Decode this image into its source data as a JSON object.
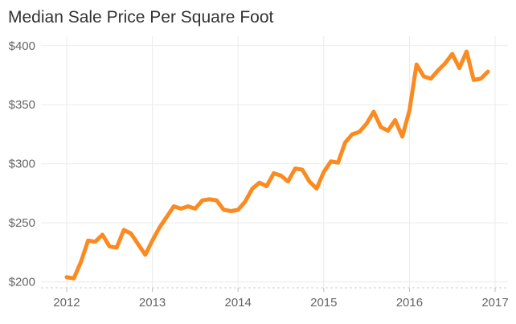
{
  "chart_data": {
    "type": "line",
    "title": "Median Sale Price Per Square Foot",
    "xlabel": "",
    "ylabel": "",
    "x_ticks": [
      2012,
      2013,
      2014,
      2015,
      2016,
      2017
    ],
    "y_ticks": [
      {
        "value": 200,
        "label": "$200"
      },
      {
        "value": 250,
        "label": "$250"
      },
      {
        "value": 300,
        "label": "$300"
      },
      {
        "value": 350,
        "label": "$350"
      },
      {
        "value": 400,
        "label": "$400"
      }
    ],
    "xlim": [
      2011.7,
      2017.15
    ],
    "ylim": [
      195,
      408
    ],
    "grid": true,
    "line_color": "#fb8a21",
    "series": [
      {
        "x": [
          2012.0,
          2012.083,
          2012.167,
          2012.25,
          2012.333,
          2012.417,
          2012.5,
          2012.583,
          2012.667,
          2012.75,
          2012.833,
          2012.917,
          2013.0,
          2013.083,
          2013.167,
          2013.25,
          2013.333,
          2013.417,
          2013.5,
          2013.583,
          2013.667,
          2013.75,
          2013.833,
          2013.917,
          2014.0,
          2014.083,
          2014.167,
          2014.25,
          2014.333,
          2014.417,
          2014.5,
          2014.583,
          2014.667,
          2014.75,
          2014.833,
          2014.917,
          2015.0,
          2015.083,
          2015.167,
          2015.25,
          2015.333,
          2015.417,
          2015.5,
          2015.583,
          2015.667,
          2015.75,
          2015.833,
          2015.917,
          2016.0,
          2016.083,
          2016.167,
          2016.25,
          2016.333,
          2016.417,
          2016.5,
          2016.583,
          2016.667,
          2016.75,
          2016.833,
          2016.917
        ],
        "values": [
          204,
          203,
          217,
          235,
          234,
          240,
          230,
          229,
          244,
          241,
          232,
          223,
          235,
          246,
          255,
          264,
          262,
          264,
          262,
          269,
          270,
          269,
          261,
          260,
          261,
          268,
          279,
          284,
          281,
          292,
          290,
          285,
          296,
          295,
          285,
          279,
          293,
          302,
          301,
          318,
          325,
          327,
          334,
          344,
          331,
          328,
          337,
          323,
          345,
          384,
          374,
          372,
          379,
          385,
          393,
          381,
          395,
          371,
          372,
          378
        ]
      }
    ]
  }
}
